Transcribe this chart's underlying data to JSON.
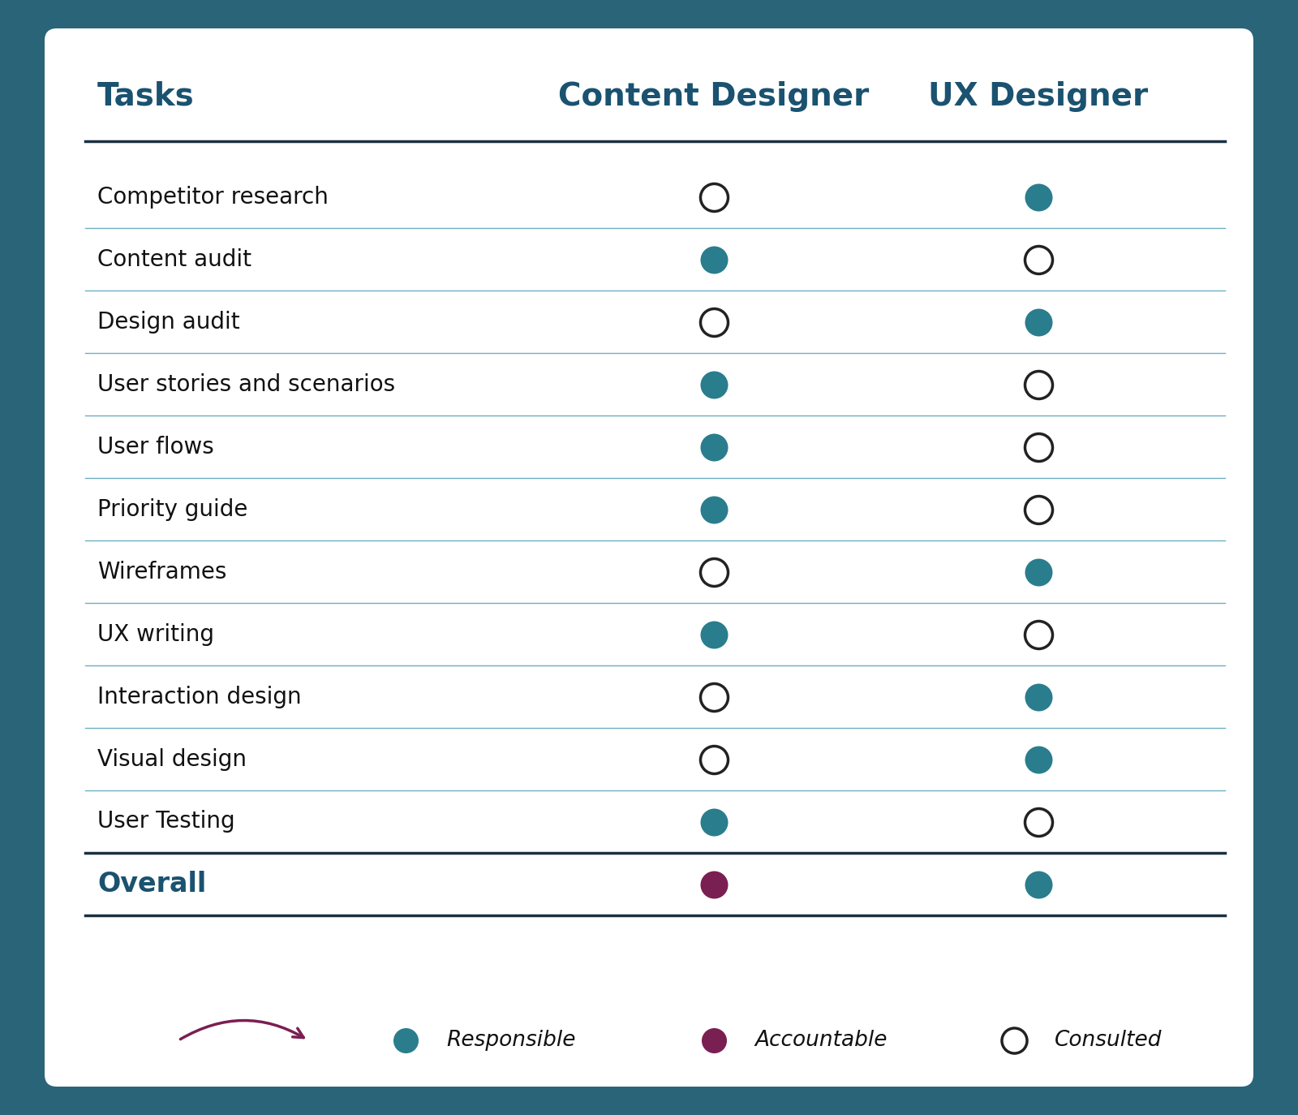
{
  "background_outer": "#2a6478",
  "background_inner": "#ffffff",
  "title_tasks": "Tasks",
  "title_content": "Content Designer",
  "title_ux": "UX Designer",
  "header_color": "#1a5270",
  "overall_label": "Overall",
  "tasks": [
    "Competitor research",
    "Content audit",
    "Design audit",
    "User stories and scenarios",
    "User flows",
    "Priority guide",
    "Wireframes",
    "UX writing",
    "Interaction design",
    "Visual design",
    "User Testing"
  ],
  "content_designer": [
    "C",
    "R",
    "C",
    "R",
    "R",
    "R",
    "C",
    "R",
    "C",
    "C",
    "R"
  ],
  "ux_designer": [
    "R",
    "C",
    "R",
    "C",
    "C",
    "C",
    "R",
    "C",
    "R",
    "R",
    "C"
  ],
  "overall_content": "A",
  "overall_ux": "R",
  "responsible_color": "#2a7d8c",
  "accountable_color": "#7a1f52",
  "consulted_color": "#ffffff",
  "consulted_edge": "#222222",
  "row_line_color": "#4a9ab4",
  "header_line_color": "#1a3040",
  "overall_line_color": "#1a3040",
  "legend_arrow_color": "#7a1f52",
  "task_font_size": 20,
  "header_font_size": 28,
  "overall_font_size": 24,
  "legend_font_size": 19
}
